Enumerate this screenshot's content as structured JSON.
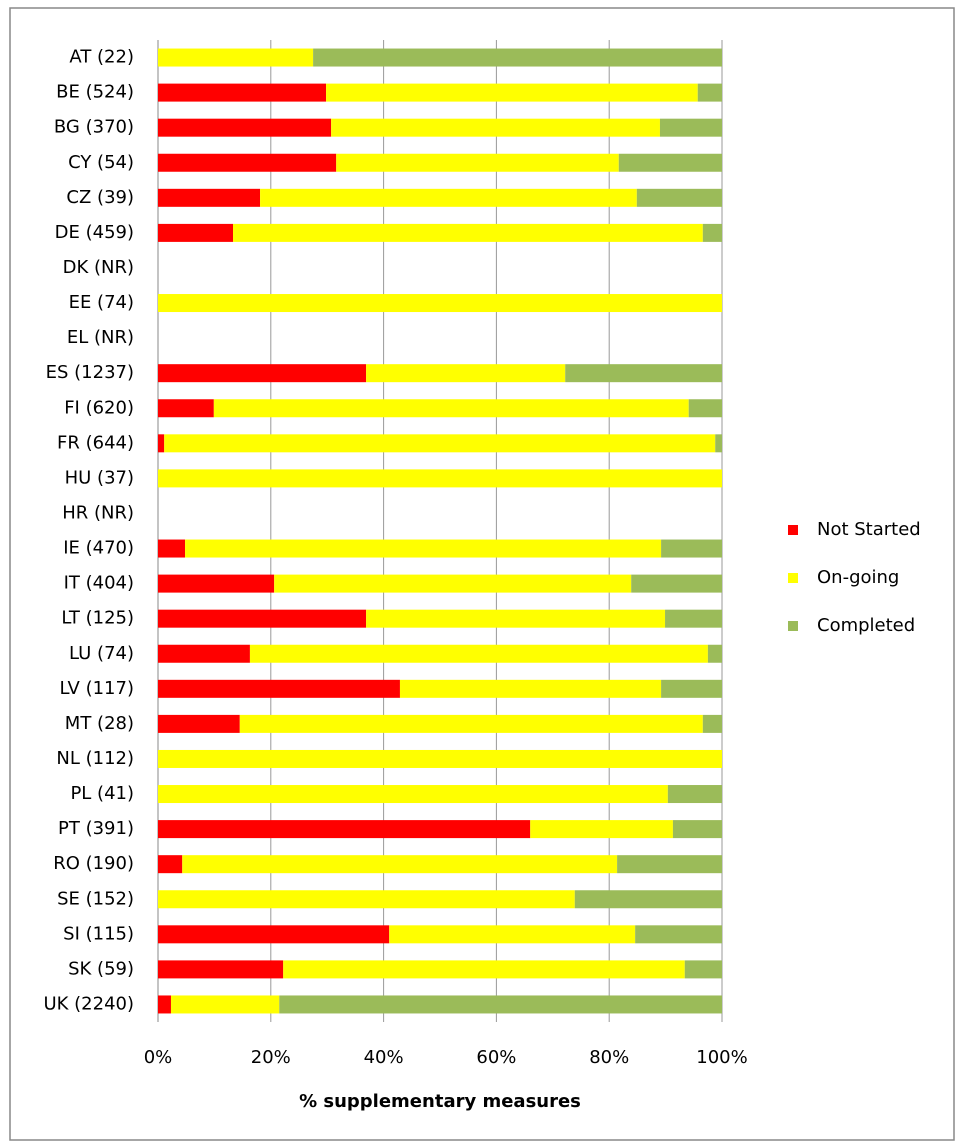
{
  "chart_data": {
    "type": "stacked-barh",
    "xlabel": "% supplementary measures",
    "categories": [
      "AT (22)",
      "BE (524)",
      "BG (370)",
      "CY (54)",
      "CZ (39)",
      "DE (459)",
      "DK (NR)",
      "EE (74)",
      "EL (NR)",
      "ES (1237)",
      "FI (620)",
      "FR (644)",
      "HU (37)",
      "HR (NR)",
      "IE (470)",
      "IT (404)",
      "LT (125)",
      "LU (74)",
      "LV (117)",
      "MT (28)",
      "NL (112)",
      "PL (41)",
      "PT (391)",
      "RO (190)",
      "SE (152)",
      "SI (115)",
      "SK (59)",
      "UK (2240)"
    ],
    "series": [
      {
        "name": "Not Started",
        "color": "#ff0000",
        "values": [
          0,
          29.8,
          30.7,
          31.6,
          18.1,
          13.3,
          null,
          0,
          null,
          36.9,
          9.9,
          1.1,
          0,
          null,
          4.8,
          20.6,
          36.9,
          16.3,
          42.9,
          14.5,
          0,
          0,
          66.0,
          4.3,
          0,
          41.0,
          22.2,
          2.3
        ]
      },
      {
        "name": "On-going",
        "color": "#ffff00",
        "values": [
          27.5,
          65.9,
          58.3,
          50.1,
          66.8,
          83.3,
          null,
          100,
          null,
          35.3,
          84.2,
          97.7,
          100,
          null,
          84.4,
          63.3,
          53.0,
          81.2,
          46.3,
          82.1,
          100,
          90.4,
          25.3,
          77.1,
          73.9,
          43.6,
          71.2,
          19.2
        ]
      },
      {
        "name": "Completed",
        "color": "#9bbb59",
        "values": [
          72.5,
          4.3,
          11.0,
          18.3,
          15.1,
          3.4,
          null,
          0,
          null,
          27.8,
          5.9,
          1.2,
          0,
          null,
          10.8,
          16.1,
          10.1,
          2.5,
          10.8,
          3.4,
          0,
          9.6,
          8.7,
          18.6,
          26.1,
          15.4,
          6.6,
          78.5
        ]
      }
    ],
    "xlim": [
      0,
      100
    ],
    "xticks": [
      {
        "value": 0,
        "label": "0%"
      },
      {
        "value": 20,
        "label": "20%"
      },
      {
        "value": 40,
        "label": "40%"
      },
      {
        "value": 60,
        "label": "60%"
      },
      {
        "value": 80,
        "label": "80%"
      },
      {
        "value": 100,
        "label": "100%"
      }
    ],
    "grid": true,
    "legend": "right"
  }
}
